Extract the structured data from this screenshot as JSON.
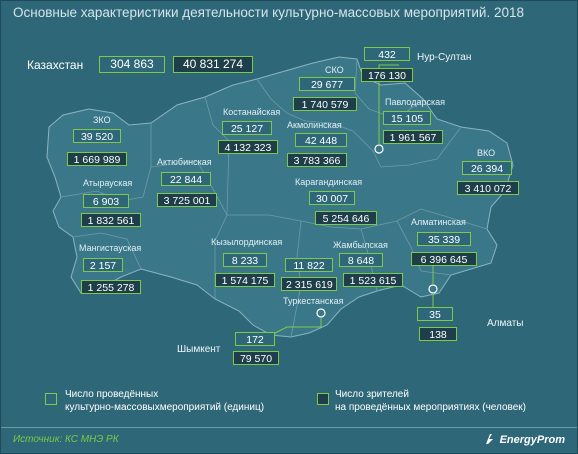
{
  "title": "Основные характеристики деятельности культурно-массовых мероприятий. 2018",
  "colors": {
    "events_fill": "#2e6878",
    "viewers_fill": "#1e3f49",
    "border": "#7ec84a",
    "map": "#3a7889"
  },
  "kazakhstan": {
    "label": "Казахстан",
    "events": "304 863",
    "viewers": "40 831 274"
  },
  "regions": {
    "nur_sultan": {
      "label": "Нур-Султан",
      "events": "432",
      "viewers": "176 130"
    },
    "sko": {
      "label": "СКО",
      "events": "29 677",
      "viewers": "1 740 579"
    },
    "pavlodar": {
      "label": "Павлодарская",
      "events": "15 105",
      "viewers": "1 961 567"
    },
    "kostanay": {
      "label": "Костанайская",
      "events": "25 127",
      "viewers": "4 132 323"
    },
    "akmola": {
      "label": "Акмолинская",
      "events": "42 448",
      "viewers": "3 783 366"
    },
    "zko": {
      "label": "ЗКО",
      "events": "39 520",
      "viewers": "1 669 989"
    },
    "aktobe": {
      "label": "Актюбинская",
      "events": "22 844",
      "viewers": "3 725 001"
    },
    "vko": {
      "label": "ВКО",
      "events": "26 394",
      "viewers": "3 410 072"
    },
    "atyrau": {
      "label": "Атырауская",
      "events": "6 903",
      "viewers": "1 832 561"
    },
    "karaganda": {
      "label": "Карагандинская",
      "events": "30 007",
      "viewers": "5 254 646"
    },
    "almaty_obl": {
      "label": "Алматинская",
      "events": "35 339",
      "viewers": "6 396 645"
    },
    "mangistau": {
      "label": "Мангистауская",
      "events": "2 157",
      "viewers": "1 255 278"
    },
    "kyzylorda": {
      "label": "Кызылординская",
      "events": "8 233",
      "viewers": "1 574 175"
    },
    "zhambyl": {
      "label": "Жамбылская",
      "events": "8 648",
      "viewers": "1 523 615"
    },
    "turkestan": {
      "label": "Туркестанская",
      "events": "11 822",
      "viewers": "2 315 619"
    },
    "shymkent": {
      "label": "Шымкент",
      "events": "172",
      "viewers": "79 570"
    },
    "almaty": {
      "label": "Алматы",
      "events": "35",
      "viewers": "138"
    }
  },
  "legend": {
    "events_line1": "Число проведённых",
    "events_line2": "культурно-массовыхмероприятий (единиц)",
    "viewers_line1": "Число зрителей",
    "viewers_line2": "на проведённых мероприятиях (человек)"
  },
  "source": "Источник: КС МНЭ РК",
  "brand": "EnergyProm"
}
